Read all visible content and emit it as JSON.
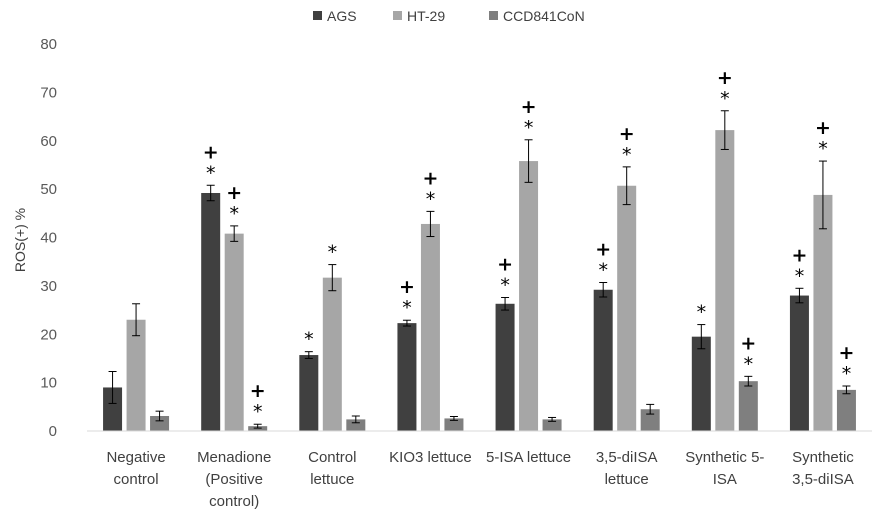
{
  "chart_data": {
    "type": "bar",
    "title": "",
    "xlabel": "",
    "ylabel": "ROS(+) %",
    "ylim": [
      0,
      80
    ],
    "yticks": [
      0,
      10,
      20,
      30,
      40,
      50,
      60,
      70,
      80
    ],
    "grid": false,
    "legend_position": "top",
    "categories": [
      [
        "Negative",
        "control"
      ],
      [
        "Menadione",
        "(Positive",
        "control)"
      ],
      [
        "Control",
        "lettuce"
      ],
      [
        "KIO3 lettuce"
      ],
      [
        "5-ISA lettuce"
      ],
      [
        "3,5-diISA",
        "lettuce"
      ],
      [
        "Synthetic 5-",
        "ISA"
      ],
      [
        "Synthetic",
        "3,5-diISA"
      ]
    ],
    "series": [
      {
        "name": "AGS",
        "color": "#404040",
        "values": [
          9,
          49.2,
          15.7,
          22.3,
          26.3,
          29.2,
          19.5,
          28
        ],
        "errors": [
          3.3,
          1.6,
          0.7,
          0.6,
          1.3,
          1.5,
          2.5,
          1.5
        ],
        "star": [
          false,
          true,
          true,
          true,
          true,
          true,
          true,
          true
        ],
        "plus": [
          false,
          true,
          false,
          true,
          true,
          true,
          false,
          true
        ]
      },
      {
        "name": "HT-29",
        "color": "#a6a6a6",
        "values": [
          23,
          40.8,
          31.7,
          42.8,
          55.8,
          50.7,
          62.2,
          48.8
        ],
        "errors": [
          3.3,
          1.6,
          2.7,
          2.6,
          4.4,
          3.9,
          4,
          7
        ],
        "star": [
          false,
          true,
          true,
          true,
          true,
          true,
          true,
          true
        ],
        "plus": [
          false,
          true,
          false,
          true,
          true,
          true,
          true,
          true
        ]
      },
      {
        "name": "CCD841CoN",
        "color": "#7f7f7f",
        "values": [
          3.1,
          1,
          2.4,
          2.6,
          2.4,
          4.5,
          10.3,
          8.5
        ],
        "errors": [
          1,
          0.4,
          0.7,
          0.4,
          0.4,
          1,
          1,
          0.8
        ],
        "star": [
          false,
          true,
          false,
          false,
          false,
          false,
          true,
          true
        ],
        "plus": [
          false,
          true,
          false,
          false,
          false,
          false,
          true,
          true
        ]
      }
    ],
    "annotation_symbols": {
      "star": "*",
      "plus": "+"
    }
  }
}
